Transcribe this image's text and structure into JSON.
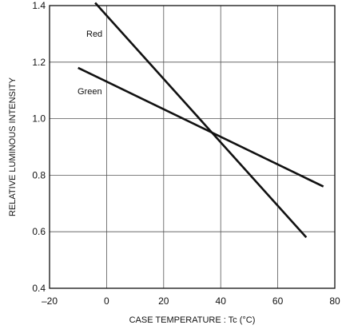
{
  "chart_data": {
    "type": "line",
    "title": "",
    "xlabel": "CASE TEMPERATURE : Tc (°C)",
    "ylabel": "RELATIVE LUMINOUS INTENSITY",
    "xlim": [
      -20,
      80
    ],
    "ylim": [
      0.4,
      1.4
    ],
    "grid": true,
    "x_ticks": [
      -20,
      0,
      20,
      40,
      60,
      80
    ],
    "x_tick_labels": [
      "–20",
      "0",
      "20",
      "40",
      "60",
      "80"
    ],
    "y_ticks": [
      0.4,
      0.6,
      0.8,
      1.0,
      1.2,
      1.4
    ],
    "y_tick_labels": [
      "0.4",
      "0.6",
      "0.8",
      "1.0",
      "1.2",
      "1.4"
    ],
    "series": [
      {
        "name": "Red",
        "points": [
          [
            -4,
            1.41
          ],
          [
            70,
            0.58
          ]
        ]
      },
      {
        "name": "Green",
        "points": [
          [
            -10,
            1.18
          ],
          [
            76,
            0.76
          ]
        ]
      }
    ]
  }
}
